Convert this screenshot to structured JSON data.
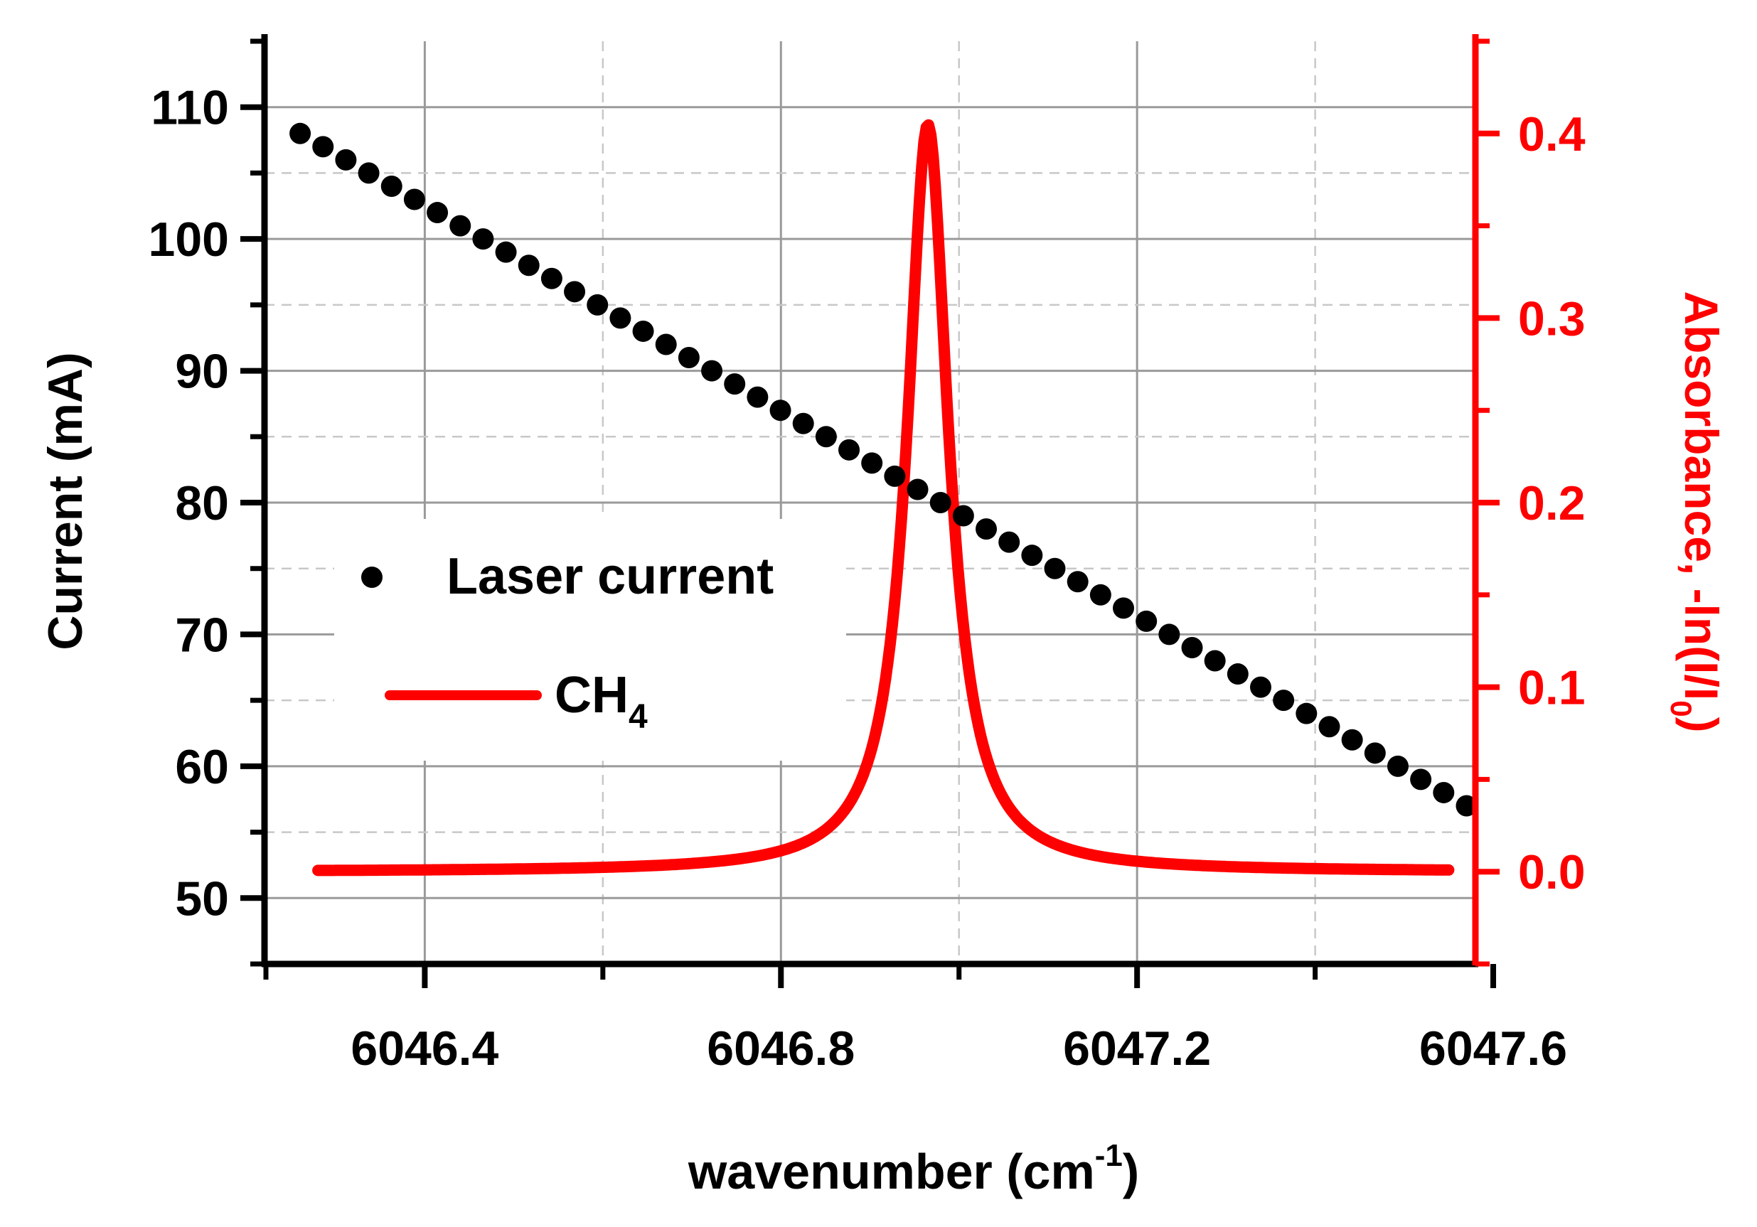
{
  "chart_data": {
    "type": "scatter+line",
    "title": "",
    "xlabel": {
      "main": "wavenumber (cm",
      "sup": "-1",
      "tail": ")"
    },
    "ylabel_left": "Current (mA)",
    "ylabel_right": {
      "main": "Absorbance, -ln(I/I",
      "sub": "0",
      "tail": ")"
    },
    "xlim": [
      6046.22,
      6047.58
    ],
    "ylim_left": [
      45,
      115
    ],
    "ylim_right": [
      -0.05,
      0.45
    ],
    "x_ticks": [
      6046.4,
      6046.8,
      6047.2,
      6047.6
    ],
    "x_tick_labels": [
      "6046.4",
      "6046.8",
      "6047.2",
      "6047.6"
    ],
    "x_minor_ticks": [
      6046.6,
      6047.0,
      6047.4
    ],
    "y_left_ticks": [
      50,
      60,
      70,
      80,
      90,
      100,
      110
    ],
    "y_left_tick_labels": [
      "50",
      "60",
      "70",
      "80",
      "90",
      "100",
      "110"
    ],
    "y_right_ticks": [
      0.0,
      0.1,
      0.2,
      0.3,
      0.4
    ],
    "y_right_tick_labels": [
      "0.0",
      "0.1",
      "0.2",
      "0.3",
      "0.4"
    ],
    "grid": true,
    "legend": {
      "placement": "center-left",
      "entries": [
        {
          "label": "Laser current",
          "marker": "dot",
          "color": "#000000"
        },
        {
          "label": "CH",
          "sub": "4",
          "marker": "line",
          "color": "#ff0000"
        }
      ]
    },
    "series": [
      {
        "name": "Laser current",
        "axis": "left",
        "type": "scatter",
        "color": "#000000",
        "x_start": 6046.26,
        "x_end": 6047.57,
        "y_start": 108,
        "y_end": 57,
        "n_points": 52
      },
      {
        "name": "CH4",
        "axis": "right",
        "type": "line",
        "color": "#ff0000",
        "x_start": 6046.28,
        "x_end": 6047.55,
        "center": 6046.965,
        "peak": 0.405,
        "hwhm": 0.028
      }
    ]
  }
}
